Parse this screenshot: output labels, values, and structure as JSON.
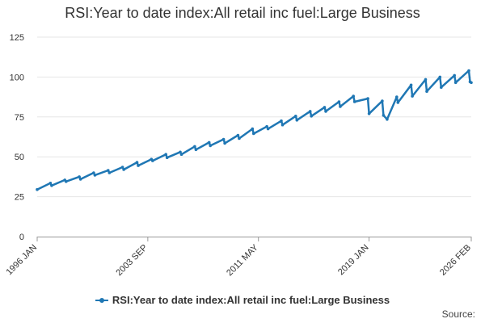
{
  "colors": {
    "series": "#1f77b4",
    "grid": "#e6e6e6",
    "axis": "#999999",
    "text": "#333333"
  },
  "source_label": "Source:",
  "chart_data": {
    "type": "line",
    "title": "RSI:Year to date index:All retail inc fuel:Large Business",
    "xlabel": "",
    "ylabel": "",
    "ylim": [
      0,
      125
    ],
    "yticks": [
      0,
      25,
      50,
      75,
      100,
      125
    ],
    "xlim": [
      "1996-01",
      "2026-02"
    ],
    "xticks": [
      "1996 JAN",
      "2003 SEP",
      "2011 MAY",
      "2019 JAN",
      "2026 FEB"
    ],
    "grid": true,
    "legend_position": "bottom",
    "series": [
      {
        "name": "RSI:Year to date index:All retail inc fuel:Large Business",
        "x": [
          "1996-01",
          "1996-12",
          "1997-01",
          "1997-12",
          "1998-01",
          "1998-12",
          "1999-01",
          "1999-12",
          "2000-01",
          "2000-12",
          "2001-01",
          "2001-12",
          "2002-01",
          "2002-12",
          "2003-01",
          "2003-12",
          "2004-01",
          "2004-12",
          "2005-01",
          "2005-12",
          "2006-01",
          "2006-12",
          "2007-01",
          "2007-12",
          "2008-01",
          "2008-12",
          "2009-01",
          "2009-12",
          "2010-01",
          "2010-12",
          "2011-01",
          "2011-12",
          "2012-01",
          "2012-12",
          "2013-01",
          "2013-12",
          "2014-01",
          "2014-12",
          "2015-01",
          "2015-12",
          "2016-01",
          "2016-12",
          "2017-01",
          "2017-12",
          "2018-01",
          "2018-12",
          "2019-01",
          "2019-12",
          "2020-01",
          "2020-04",
          "2020-12",
          "2021-01",
          "2021-12",
          "2022-01",
          "2022-12",
          "2023-01",
          "2023-12",
          "2024-01",
          "2024-12",
          "2025-01",
          "2025-12",
          "2026-01",
          "2026-02"
        ],
        "values": [
          29.5,
          33.5,
          32.0,
          35.5,
          34.5,
          37.5,
          36.0,
          40.0,
          38.5,
          41.5,
          40.0,
          43.5,
          42.0,
          46.5,
          44.5,
          48.5,
          47.5,
          51.5,
          49.5,
          53.0,
          51.5,
          56.5,
          54.5,
          59.0,
          57.0,
          61.0,
          58.5,
          63.5,
          61.5,
          67.5,
          64.5,
          69.0,
          67.5,
          72.5,
          70.0,
          75.5,
          73.0,
          78.5,
          75.5,
          81.0,
          78.5,
          84.5,
          81.5,
          88.0,
          84.5,
          86.5,
          77.0,
          85.0,
          76.0,
          73.5,
          87.5,
          84.0,
          95.0,
          88.0,
          98.5,
          91.0,
          100.0,
          93.5,
          101.0,
          96.5,
          104.0,
          97.0,
          96.5
        ]
      }
    ]
  }
}
